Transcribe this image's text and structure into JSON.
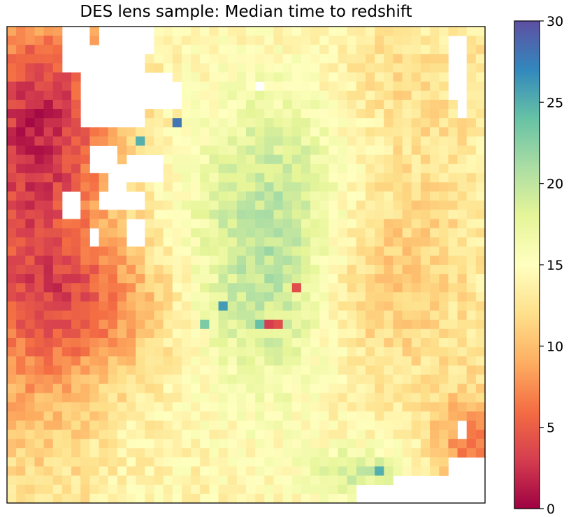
{
  "chart_data": {
    "type": "heatmap",
    "title": "DES lens sample: Median time to redshift",
    "xlabel": "",
    "ylabel": "",
    "colormap": "Spectral",
    "colorbar": {
      "range": [
        0,
        30
      ],
      "ticks": [
        0,
        5,
        10,
        15,
        20,
        25,
        30
      ],
      "tick_labels": [
        "0",
        "5",
        "10",
        "15",
        "20",
        "25",
        "30"
      ]
    },
    "grid_rows": 52,
    "grid_cols": 52,
    "missing_color": "#ffffff",
    "field_description_blobs": [
      {
        "cx": 2,
        "cy": 22,
        "sx": 6,
        "sy": 16,
        "amp": -9
      },
      {
        "cx": 4,
        "cy": 8,
        "sx": 6,
        "sy": 7,
        "amp": -6
      },
      {
        "cx": 10,
        "cy": 30,
        "sx": 6,
        "sy": 5,
        "amp": -5
      },
      {
        "cx": 28,
        "cy": 28,
        "sx": 6,
        "sy": 9,
        "amp": 6
      },
      {
        "cx": 30,
        "cy": 14,
        "sx": 7,
        "sy": 8,
        "amp": 4
      },
      {
        "cx": 40,
        "cy": 26,
        "sx": 7,
        "sy": 9,
        "amp": -4
      },
      {
        "cx": 38,
        "cy": 48,
        "sx": 4,
        "sy": 2,
        "amp": 5
      },
      {
        "cx": 50,
        "cy": 45,
        "sx": 3,
        "sy": 4,
        "amp": -7
      },
      {
        "cx": 42,
        "cy": 6,
        "sx": 9,
        "sy": 6,
        "amp": -2
      }
    ],
    "base_value": 14,
    "hotspots": [
      {
        "row": 10,
        "col": 18,
        "value": 28
      },
      {
        "row": 12,
        "col": 14,
        "value": 25
      },
      {
        "row": 30,
        "col": 23,
        "value": 26
      },
      {
        "row": 32,
        "col": 27,
        "value": 24
      },
      {
        "row": 32,
        "col": 21,
        "value": 23
      },
      {
        "row": 48,
        "col": 40,
        "value": 25
      },
      {
        "row": 28,
        "col": 31,
        "value": 4
      },
      {
        "row": 32,
        "col": 28,
        "value": 3
      },
      {
        "row": 32,
        "col": 29,
        "value": 4
      },
      {
        "row": 51,
        "col": 47,
        "value": 1
      }
    ],
    "masked_regions": [
      [
        0,
        5,
        6,
        9
      ],
      [
        0,
        3,
        10,
        16
      ],
      [
        1,
        9,
        11,
        15
      ],
      [
        2,
        11,
        8,
        15
      ],
      [
        5,
        9,
        15,
        18
      ],
      [
        6,
        9,
        16,
        19
      ],
      [
        13,
        16,
        9,
        12
      ],
      [
        14,
        17,
        13,
        17
      ],
      [
        15,
        18,
        11,
        13
      ],
      [
        18,
        20,
        10,
        15
      ],
      [
        21,
        24,
        13,
        15
      ],
      [
        18,
        21,
        6,
        8
      ],
      [
        22,
        24,
        9,
        10
      ],
      [
        1,
        8,
        48,
        50
      ],
      [
        8,
        10,
        49,
        50
      ],
      [
        43,
        45,
        49,
        50
      ],
      [
        47,
        50,
        48,
        52
      ],
      [
        49,
        52,
        42,
        52
      ],
      [
        50,
        52,
        38,
        42
      ],
      [
        6,
        7,
        27,
        28
      ]
    ]
  }
}
